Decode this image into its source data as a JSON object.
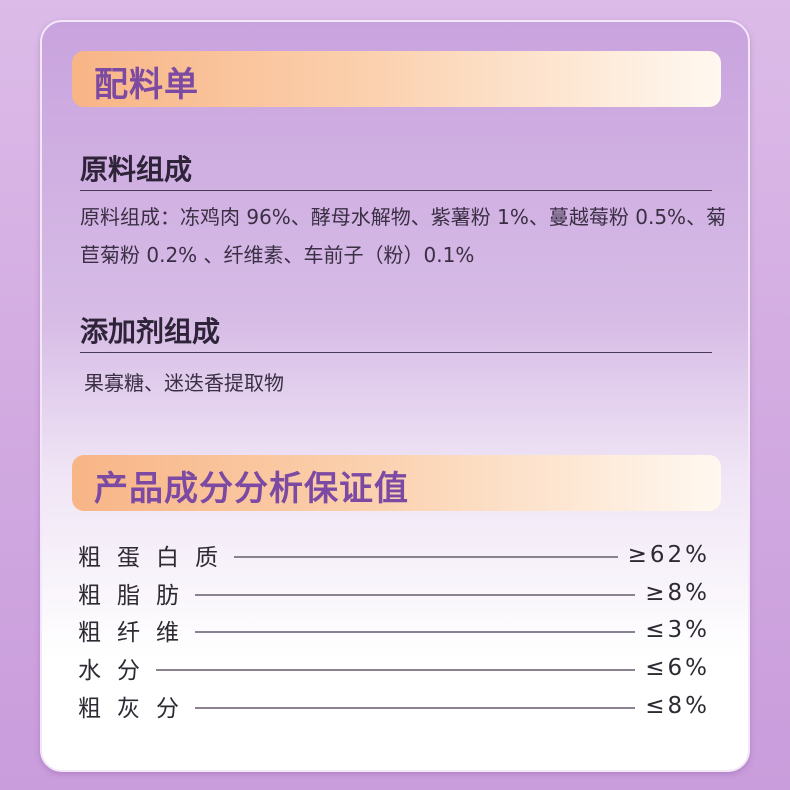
{
  "section1": {
    "title": "配料单"
  },
  "raw": {
    "heading": "原料组成",
    "text": "原料组成：冻鸡肉 96%、酵母水解物、紫薯粉 1%、蔓越莓粉 0.5%、菊苣菊粉 0.2% 、纤维素、车前子（粉）0.1%"
  },
  "additives": {
    "heading": "添加剂组成",
    "text": "果寡糖、迷迭香提取物"
  },
  "section2": {
    "title": "产品成分分析保证值"
  },
  "analysis": [
    {
      "label": "粗蛋白质",
      "value": "≥62%"
    },
    {
      "label": "粗脂肪",
      "value": "≥8%"
    },
    {
      "label": "粗纤维",
      "value": "≤3%"
    },
    {
      "label": "水分",
      "value": "≤6%"
    },
    {
      "label": "粗灰分",
      "value": "≤8%"
    }
  ],
  "colors": {
    "title": "#7c4aa2",
    "bar_start": "#f8b586",
    "background": "#d2aae2"
  }
}
